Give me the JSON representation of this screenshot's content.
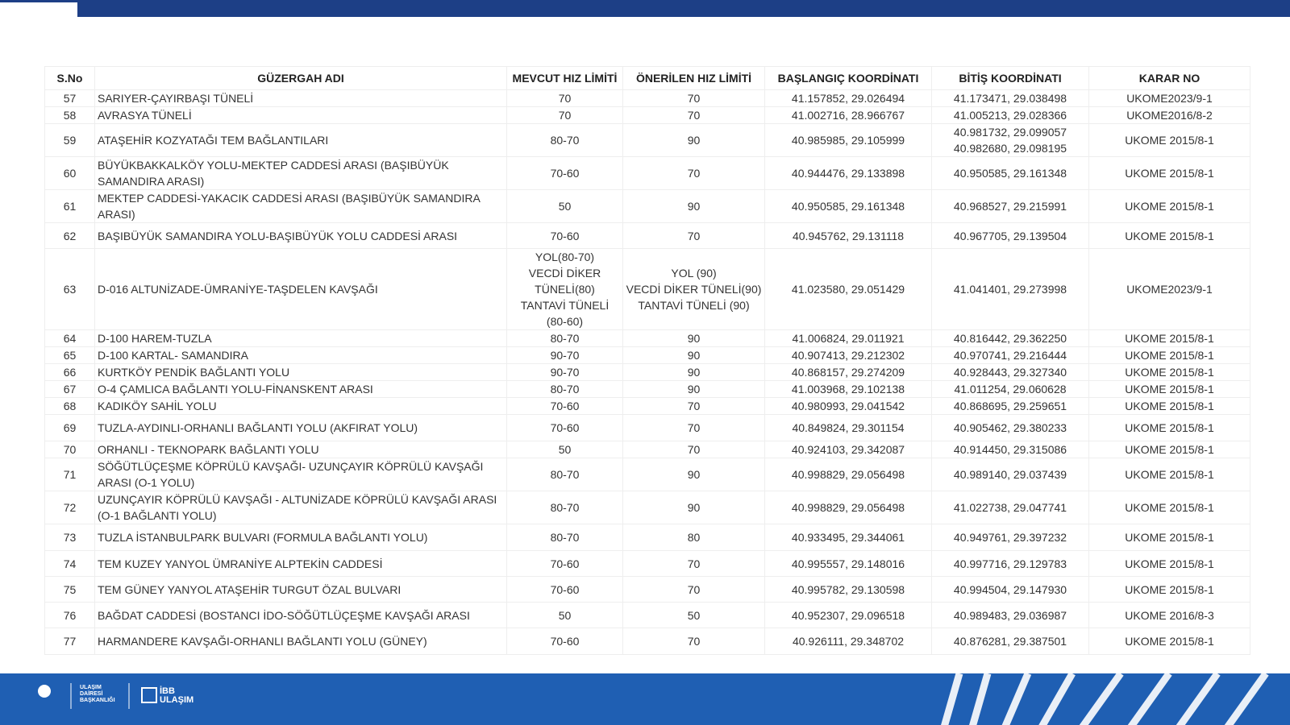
{
  "table": {
    "headers": [
      "S.No",
      "GÜZERGAH ADI",
      "MEVCUT HIZ LİMİTİ",
      "ÖNERİLEN HIZ LİMİTİ",
      "BAŞLANGIÇ KOORDİNATI",
      "BİTİŞ KOORDİNATI",
      "KARAR NO"
    ],
    "rows": [
      [
        "57",
        "SARIYER-ÇAYIRBAŞI TÜNELİ",
        "70",
        "70",
        "41.157852, 29.026494",
        "41.173471, 29.038498",
        "UKOME2023/9-1"
      ],
      [
        "58",
        "AVRASYA TÜNELİ",
        "70",
        "70",
        "41.002716, 28.966767",
        "41.005213, 29.028366",
        "UKOME2016/8-2"
      ],
      [
        "59",
        "ATAŞEHİR KOZYATAĞI TEM BAĞLANTILARI",
        "80-70",
        "90",
        "40.985985, 29.105999",
        "40.981732, 29.099057\n40.982680, 29.098195",
        "UKOME 2015/8-1"
      ],
      [
        "60",
        "BÜYÜKBAKKALKÖY YOLU-MEKTEP CADDESİ ARASI (BAŞIBÜYÜK SAMANDIRA ARASI)",
        "70-60",
        "70",
        "40.944476, 29.133898",
        "40.950585, 29.161348",
        "UKOME 2015/8-1"
      ],
      [
        "61",
        "MEKTEP CADDESİ-YAKACIK CADDESİ ARASI (BAŞIBÜYÜK SAMANDIRA ARASI)",
        "50",
        "90",
        "40.950585, 29.161348",
        "40.968527, 29.215991",
        "UKOME 2015/8-1"
      ],
      [
        "62",
        "BAŞIBÜYÜK SAMANDIRA YOLU-BAŞIBÜYÜK YOLU CADDESİ ARASI",
        "70-60",
        "70",
        "40.945762, 29.131118",
        "40.967705, 29.139504",
        "UKOME 2015/8-1"
      ],
      [
        "63",
        "D-016 ALTUNİZADE-ÜMRANİYE-TAŞDELEN KAVŞAĞI",
        "YOL(80-70)\nVECDİ DİKER TÜNELİ(80)\nTANTAVİ TÜNELİ (80-60)",
        "YOL (90)\nVECDİ DİKER TÜNELİ(90)\nTANTAVİ TÜNELİ (90)",
        "41.023580, 29.051429",
        "41.041401, 29.273998",
        "UKOME2023/9-1"
      ],
      [
        "64",
        "D-100 HAREM-TUZLA",
        "80-70",
        "90",
        "41.006824, 29.011921",
        "40.816442, 29.362250",
        "UKOME 2015/8-1"
      ],
      [
        "65",
        "D-100 KARTAL- SAMANDIRA",
        "90-70",
        "90",
        "40.907413, 29.212302",
        "40.970741, 29.216444",
        "UKOME 2015/8-1"
      ],
      [
        "66",
        "KURTKÖY PENDİK BAĞLANTI YOLU",
        "90-70",
        "90",
        "40.868157, 29.274209",
        "40.928443, 29.327340",
        "UKOME 2015/8-1"
      ],
      [
        "67",
        "O-4 ÇAMLICA BAĞLANTI YOLU-FİNANSKENT ARASI",
        "80-70",
        "90",
        "41.003968, 29.102138",
        "41.011254, 29.060628",
        "UKOME 2015/8-1"
      ],
      [
        "68",
        "KADIKÖY SAHİL YOLU",
        "70-60",
        "70",
        "40.980993, 29.041542",
        "40.868695, 29.259651",
        "UKOME 2015/8-1"
      ],
      [
        "69",
        "TUZLA-AYDINLI-ORHANLI BAĞLANTI YOLU (AKFIRAT YOLU)",
        "70-60",
        "70",
        "40.849824, 29.301154",
        "40.905462, 29.380233",
        "UKOME 2015/8-1"
      ],
      [
        "70",
        "ORHANLI - TEKNOPARK BAĞLANTI YOLU",
        "50",
        "70",
        "40.924103, 29.342087",
        "40.914450, 29.315086",
        "UKOME 2015/8-1"
      ],
      [
        "71",
        "SÖĞÜTLÜÇEŞME KÖPRÜLÜ KAVŞAĞI- UZUNÇAYIR KÖPRÜLÜ KAVŞAĞI ARASI (O-1 YOLU)",
        "80-70",
        "90",
        "40.998829, 29.056498",
        "40.989140, 29.037439",
        "UKOME 2015/8-1"
      ],
      [
        "72",
        "UZUNÇAYIR KÖPRÜLÜ KAVŞAĞI  - ALTUNİZADE KÖPRÜLÜ KAVŞAĞI ARASI (O-1 BAĞLANTI YOLU)",
        "80-70",
        "90",
        "40.998829, 29.056498",
        "41.022738, 29.047741",
        "UKOME 2015/8-1"
      ],
      [
        "73",
        "TUZLA İSTANBULPARK BULVARI (FORMULA BAĞLANTI YOLU)",
        "80-70",
        "80",
        "40.933495, 29.344061",
        "40.949761, 29.397232",
        "UKOME 2015/8-1"
      ],
      [
        "74",
        "TEM KUZEY YANYOL ÜMRANİYE ALPTEKİN CADDESİ",
        "70-60",
        "70",
        "40.995557, 29.148016",
        "40.997716, 29.129783",
        "UKOME 2015/8-1"
      ],
      [
        "75",
        "TEM GÜNEY YANYOL ATAŞEHİR TURGUT ÖZAL BULVARI",
        "70-60",
        "70",
        "40.995782, 29.130598",
        "40.994504, 29.147930",
        "UKOME 2015/8-1"
      ],
      [
        "76",
        "BAĞDAT CADDESİ (BOSTANCI İDO-SÖĞÜTLÜÇEŞME KAVŞAĞI ARASI",
        "50",
        "50",
        "40.952307, 29.096518",
        "40.989483, 29.036987",
        "UKOME 2016/8-3"
      ],
      [
        "77",
        "HARMANDERE KAVŞAĞI-ORHANLI BAĞLANTI YOLU (GÜNEY)",
        "70-60",
        "70",
        "40.926111, 29.348702",
        "40.876281, 29.387501",
        "UKOME 2015/8-1"
      ]
    ]
  },
  "footer": {
    "department": "ULAŞIM\nDAİRESİ\nBAŞKANLIĞI",
    "brand": "İBB\nULAŞIM"
  }
}
